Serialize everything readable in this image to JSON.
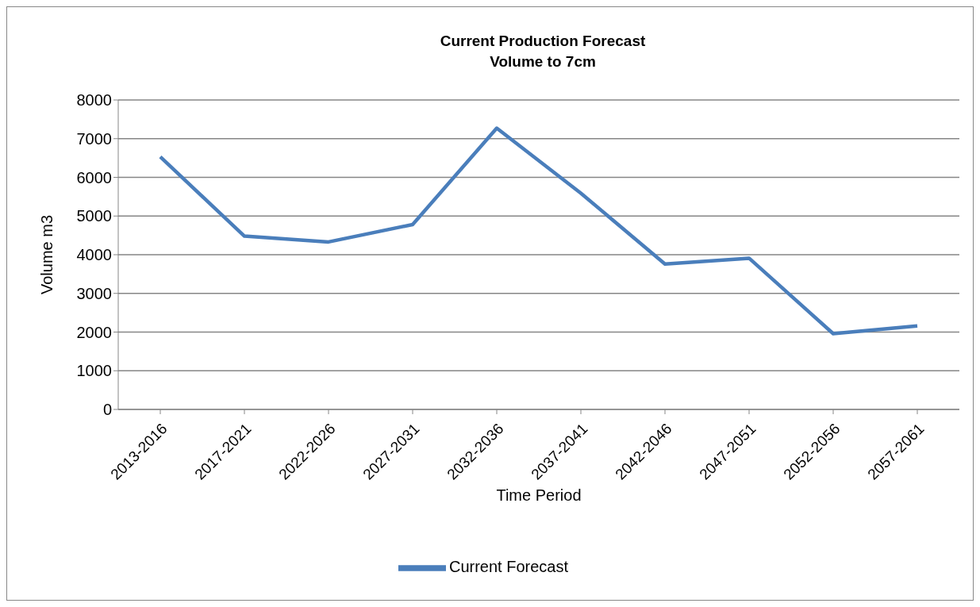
{
  "chart_data": {
    "type": "line",
    "title": "Current Production Forecast",
    "subtitle": "Volume to 7cm",
    "xlabel": "Time Period",
    "ylabel": "Volume m3",
    "categories": [
      "2013-2016",
      "2017-2021",
      "2022-2026",
      "2027-2031",
      "2032-2036",
      "2037-2041",
      "2042-2046",
      "2047-2051",
      "2052-2056",
      "2057-2061"
    ],
    "series": [
      {
        "name": "Current Forecast",
        "color": "#4a7ebb",
        "values": [
          6530,
          4480,
          4330,
          4780,
          7270,
          5590,
          3760,
          3910,
          1960,
          2160
        ]
      }
    ],
    "ylim": [
      0,
      8000
    ],
    "yticks": [
      0,
      1000,
      2000,
      3000,
      4000,
      5000,
      6000,
      7000,
      8000
    ],
    "grid": "y",
    "legend": "bottom",
    "marker": "none",
    "line_style": "solid"
  }
}
